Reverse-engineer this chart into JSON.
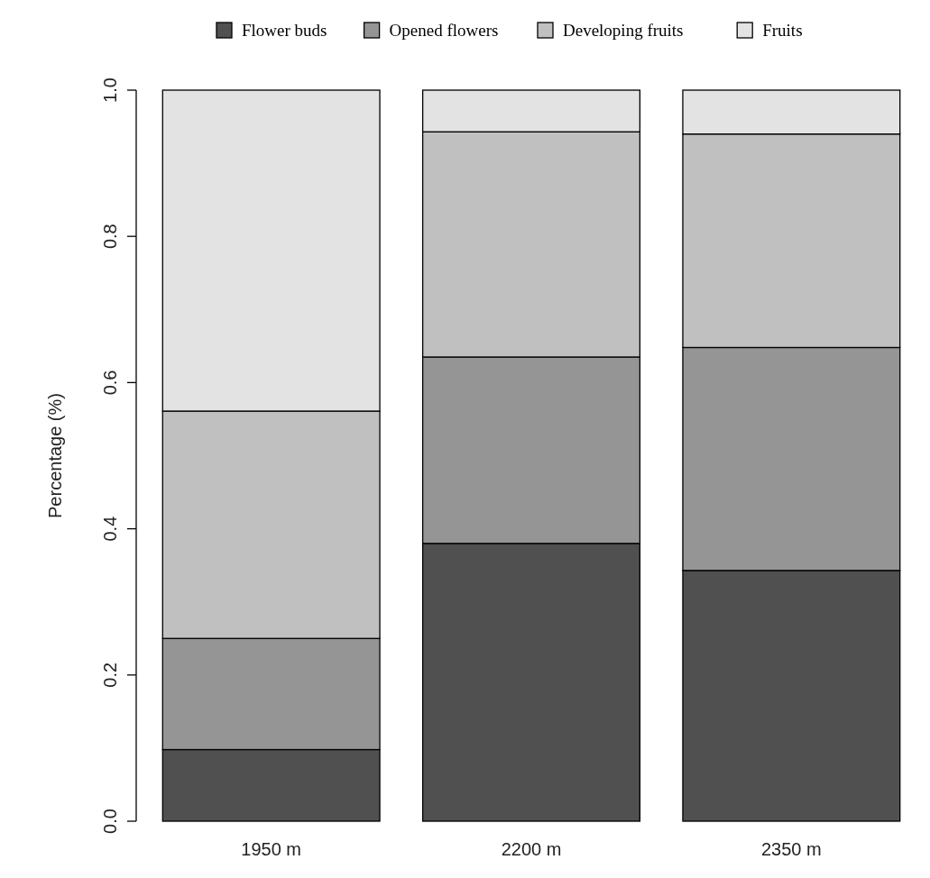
{
  "chart_data": {
    "type": "bar",
    "stacked": true,
    "ylabel": "Percentage (%)",
    "categories": [
      "1950 m",
      "2200 m",
      "2350 m"
    ],
    "series": [
      {
        "name": "Flower buds",
        "color": "#505050",
        "values": [
          0.098,
          0.38,
          0.343
        ]
      },
      {
        "name": "Opened flowers",
        "color": "#959595",
        "values": [
          0.152,
          0.255,
          0.305
        ]
      },
      {
        "name": "Developing fruits",
        "color": "#c0c0c0",
        "values": [
          0.311,
          0.308,
          0.292
        ]
      },
      {
        "name": "Fruits",
        "color": "#e3e3e3",
        "values": [
          0.439,
          0.057,
          0.06
        ]
      }
    ],
    "ylim": [
      0,
      1
    ],
    "yticks": [
      {
        "value": 0,
        "label": "0.0"
      },
      {
        "value": 0.2,
        "label": "0.2"
      },
      {
        "value": 0.4,
        "label": "0.4"
      },
      {
        "value": 0.6,
        "label": "0.6"
      },
      {
        "value": 0.8,
        "label": "0.8"
      },
      {
        "value": 1,
        "label": "1.0"
      }
    ],
    "legend": "top",
    "grid": false
  }
}
